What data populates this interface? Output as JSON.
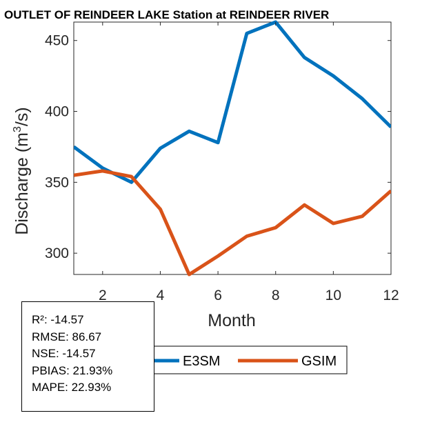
{
  "chart_data": {
    "type": "line",
    "title": "OUTLET OF REINDEER LAKE  Station at  REINDEER RIVER",
    "xlabel": "Month",
    "ylabel": "Discharge (m3/s)",
    "ylabel_parts": {
      "pre": "Discharge (m",
      "sup": "3",
      "post": "/s)"
    },
    "x": [
      1,
      2,
      3,
      4,
      5,
      6,
      7,
      8,
      9,
      10,
      11,
      12
    ],
    "xlim": [
      1,
      12
    ],
    "ylim": [
      285,
      463
    ],
    "xticks": [
      2,
      4,
      6,
      8,
      10,
      12
    ],
    "yticks": [
      300,
      350,
      400,
      450
    ],
    "series": [
      {
        "name": "E3SM",
        "color": "#0072BD",
        "values": [
          375,
          360,
          350,
          374,
          386,
          378,
          455,
          463,
          438,
          425,
          409,
          389
        ]
      },
      {
        "name": "GSIM",
        "color": "#D95319",
        "values": [
          355,
          358,
          354,
          331,
          285,
          298,
          312,
          318,
          334,
          321,
          326,
          344
        ]
      }
    ],
    "legend": {
      "placement": "bottom-right",
      "entries": [
        "E3SM",
        "GSIM"
      ]
    }
  },
  "stats": {
    "r2": "R²: -14.57",
    "rmse": "RMSE: 86.67",
    "nse": "NSE: -14.57",
    "pbias": "PBIAS: 21.93%",
    "mape": "MAPE: 22.93%"
  }
}
